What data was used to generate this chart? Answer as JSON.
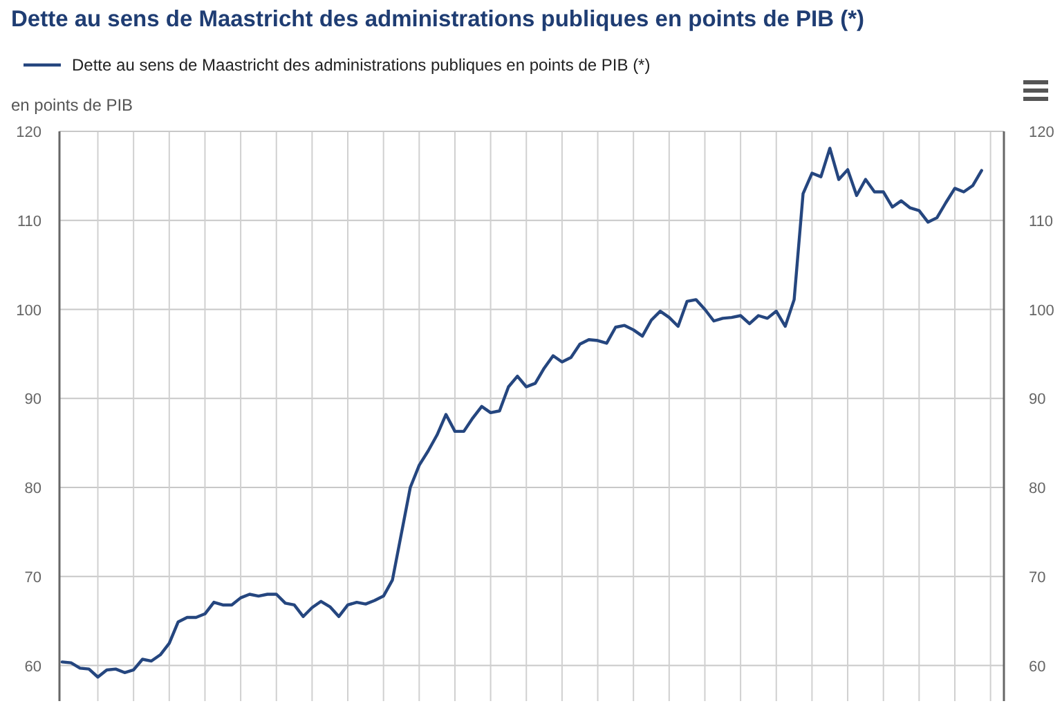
{
  "chart_data": {
    "type": "line",
    "title": "Dette au sens de Maastricht des administrations publiques en points de PIB (*)",
    "ylabel": "en points de PIB",
    "categories": [
      null,
      null,
      null,
      null,
      null,
      null,
      null,
      null,
      null,
      null,
      null,
      null,
      null,
      null,
      null,
      null,
      null,
      null,
      null,
      null,
      null,
      null,
      null,
      null,
      null,
      null,
      null,
      null,
      null,
      null,
      null,
      null,
      null,
      null,
      null,
      null,
      null,
      null,
      null,
      null,
      null,
      null,
      null,
      null,
      null,
      null,
      null,
      null,
      null,
      null,
      null,
      null,
      null,
      null,
      null,
      null,
      null,
      null,
      null,
      null,
      null,
      null,
      null,
      null,
      null,
      null,
      null,
      null,
      null,
      null,
      null,
      null,
      null,
      null,
      null,
      null,
      null,
      null,
      null,
      null,
      null,
      null,
      null,
      null,
      null,
      null,
      null,
      null,
      null,
      null,
      null,
      null,
      null,
      null,
      null,
      null,
      null,
      null,
      null,
      null,
      null,
      null,
      null,
      null
    ],
    "series": [
      {
        "name": "Dette au sens de Maastricht des administrations publiques en points de PIB (*)",
        "color": "#25467f",
        "values": [
          60.4,
          60.3,
          59.7,
          59.6,
          58.7,
          59.5,
          59.6,
          59.2,
          59.5,
          60.7,
          60.5,
          61.2,
          62.5,
          64.9,
          65.4,
          65.4,
          65.8,
          67.1,
          66.8,
          66.8,
          67.6,
          68.0,
          67.8,
          68.0,
          68.0,
          67.0,
          66.8,
          65.5,
          66.5,
          67.2,
          66.6,
          65.5,
          66.8,
          67.1,
          66.9,
          67.3,
          67.8,
          69.6,
          74.8,
          80.0,
          82.5,
          84.1,
          85.9,
          88.2,
          86.3,
          86.3,
          87.8,
          89.1,
          88.4,
          88.6,
          91.3,
          92.5,
          91.3,
          91.7,
          93.4,
          94.8,
          94.1,
          94.6,
          96.1,
          96.6,
          96.5,
          96.2,
          98.0,
          98.2,
          97.7,
          97.0,
          98.8,
          99.8,
          99.1,
          98.1,
          100.9,
          101.1,
          100.0,
          98.7,
          99.0,
          99.1,
          99.3,
          98.4,
          99.3,
          99.0,
          99.8,
          98.1,
          101.1,
          113.0,
          115.3,
          114.9,
          118.1,
          114.6,
          115.7,
          112.8,
          114.6,
          113.2,
          113.2,
          111.5,
          112.2,
          111.4,
          111.1,
          109.8,
          110.3,
          112.0,
          113.6,
          113.2,
          113.9,
          115.6
        ]
      }
    ],
    "ylim": [
      56,
      120
    ],
    "yticks": [
      60,
      70,
      80,
      90,
      100,
      110,
      120
    ],
    "y2lim": [
      56,
      120
    ],
    "y2ticks": [
      60,
      70,
      80,
      90,
      100,
      110,
      120
    ],
    "grid": true,
    "legend": "top left"
  }
}
